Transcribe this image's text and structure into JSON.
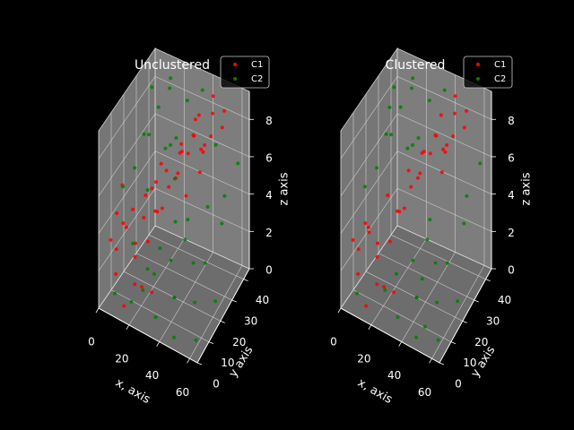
{
  "figure": {
    "background": "#000000",
    "pane_color": "#808080"
  },
  "chart_data": [
    {
      "type": "scatter",
      "title": "Unclustered",
      "xlabel": "x, axis",
      "ylabel": "y axis",
      "zlabel": "z axis",
      "x_ticks": [
        "0",
        "20",
        "40",
        "60"
      ],
      "y_ticks": [
        "0",
        "10",
        "20",
        "30",
        "40"
      ],
      "z_ticks": [
        "0",
        "2",
        "4",
        "6",
        "8"
      ],
      "xlim": [
        0,
        65
      ],
      "ylim": [
        0,
        45
      ],
      "zlim": [
        0,
        9.5
      ],
      "legend": {
        "placement": "top-right"
      },
      "grid": true,
      "series": [
        {
          "name": "C1",
          "color": "#ff0000",
          "points": [
            [
              3,
              6,
              3.2
            ],
            [
              5,
              8,
              2.6
            ],
            [
              8,
              4,
              1.8
            ],
            [
              10,
              10,
              3.8
            ],
            [
              12,
              5,
              4.6
            ],
            [
              4,
              14,
              5.4
            ],
            [
              14,
              12,
              2.2
            ],
            [
              18,
              7,
              1.4
            ],
            [
              20,
              15,
              3.0
            ],
            [
              16,
              18,
              5.0
            ],
            [
              22,
              20,
              4.2
            ],
            [
              25,
              12,
              0.8
            ],
            [
              24,
              25,
              6.0
            ],
            [
              28,
              22,
              5.6
            ],
            [
              30,
              30,
              6.8
            ],
            [
              32,
              26,
              7.2
            ],
            [
              35,
              33,
              7.6
            ],
            [
              38,
              30,
              8.0
            ],
            [
              40,
              36,
              7.0
            ],
            [
              42,
              40,
              8.4
            ],
            [
              36,
              38,
              6.4
            ],
            [
              45,
              35,
              7.8
            ],
            [
              48,
              42,
              8.6
            ],
            [
              30,
              35,
              6.2
            ],
            [
              26,
              30,
              5.2
            ],
            [
              34,
              22,
              6.6
            ],
            [
              44,
              30,
              7.4
            ],
            [
              50,
              38,
              8.2
            ],
            [
              6,
              20,
              3.6
            ],
            [
              9,
              25,
              2.8
            ],
            [
              2,
              12,
              4.0
            ],
            [
              15,
              2,
              0.6
            ],
            [
              11,
              16,
              2.4
            ],
            [
              21,
              9,
              1.2
            ],
            [
              27,
              18,
              4.8
            ],
            [
              33,
              40,
              7.9
            ],
            [
              39,
              44,
              8.8
            ],
            [
              46,
              25,
              6.9
            ],
            [
              18,
              28,
              5.8
            ],
            [
              13,
              30,
              4.4
            ],
            [
              7,
              34,
              3.4
            ],
            [
              23,
              38,
              6.1
            ],
            [
              29,
              42,
              7.3
            ],
            [
              41,
              20,
              5.9
            ],
            [
              19,
              22,
              3.9
            ]
          ]
        },
        {
          "name": "C2",
          "color": "#008000",
          "points": [
            [
              5,
              30,
              6.6
            ],
            [
              8,
              38,
              7.4
            ],
            [
              12,
              42,
              8.2
            ],
            [
              15,
              35,
              5.8
            ],
            [
              10,
              28,
              7.0
            ],
            [
              18,
              40,
              6.0
            ],
            [
              22,
              44,
              7.8
            ],
            [
              3,
              25,
              5.2
            ],
            [
              25,
              5,
              1.6
            ],
            [
              30,
              8,
              2.4
            ],
            [
              35,
              3,
              0.8
            ],
            [
              40,
              12,
              1.2
            ],
            [
              45,
              6,
              2.0
            ],
            [
              50,
              15,
              3.2
            ],
            [
              55,
              10,
              1.8
            ],
            [
              48,
              2,
              0.4
            ],
            [
              42,
              18,
              3.8
            ],
            [
              52,
              22,
              2.6
            ],
            [
              58,
              28,
              4.4
            ],
            [
              60,
              5,
              0.5
            ],
            [
              38,
              25,
              4.0
            ],
            [
              28,
              15,
              3.0
            ],
            [
              20,
              33,
              6.4
            ],
            [
              14,
              22,
              4.8
            ],
            [
              6,
              12,
              5.6
            ],
            [
              2,
              40,
              8.0
            ],
            [
              32,
              44,
              8.8
            ],
            [
              36,
              14,
              2.8
            ],
            [
              44,
              40,
              6.8
            ],
            [
              54,
              35,
              5.0
            ],
            [
              24,
              10,
              2.2
            ],
            [
              16,
              8,
              3.4
            ],
            [
              9,
              2,
              1.0
            ],
            [
              27,
              28,
              5.4
            ],
            [
              47,
              30,
              4.6
            ],
            [
              57,
              42,
              6.2
            ],
            [
              62,
              18,
              1.4
            ],
            [
              34,
              20,
              4.2
            ],
            [
              11,
              44,
              8.5
            ],
            [
              19,
              3,
              0.9
            ]
          ]
        }
      ]
    },
    {
      "type": "scatter",
      "title": "Clustered",
      "xlabel": "x, axis",
      "ylabel": "y axis",
      "zlabel": "z axis",
      "x_ticks": [
        "0",
        "20",
        "40",
        "60"
      ],
      "y_ticks": [
        "0",
        "10",
        "20",
        "30",
        "40"
      ],
      "z_ticks": [
        "0",
        "2",
        "4",
        "6",
        "8"
      ],
      "xlim": [
        0,
        65
      ],
      "ylim": [
        0,
        45
      ],
      "zlim": [
        0,
        9.5
      ],
      "legend": {
        "placement": "top-right"
      },
      "grid": true,
      "series": [
        {
          "name": "C1",
          "color": "#ff0000",
          "points": [
            [
              3,
              6,
              3.2
            ],
            [
              5,
              8,
              2.6
            ],
            [
              8,
              4,
              1.8
            ],
            [
              10,
              10,
              3.8
            ],
            [
              12,
              5,
              4.6
            ],
            [
              14,
              12,
              2.2
            ],
            [
              18,
              7,
              1.4
            ],
            [
              20,
              15,
              3.0
            ],
            [
              16,
              18,
              5.0
            ],
            [
              22,
              20,
              4.2
            ],
            [
              25,
              12,
              0.8
            ],
            [
              24,
              25,
              6.0
            ],
            [
              28,
              22,
              5.6
            ],
            [
              30,
              30,
              6.8
            ],
            [
              32,
              26,
              7.2
            ],
            [
              35,
              33,
              7.6
            ],
            [
              38,
              30,
              8.0
            ],
            [
              40,
              36,
              7.0
            ],
            [
              42,
              40,
              8.4
            ],
            [
              36,
              38,
              6.4
            ],
            [
              45,
              35,
              7.8
            ],
            [
              48,
              42,
              8.6
            ],
            [
              30,
              35,
              6.2
            ],
            [
              26,
              30,
              5.2
            ],
            [
              34,
              22,
              6.6
            ],
            [
              44,
              30,
              7.4
            ],
            [
              50,
              38,
              8.2
            ],
            [
              11,
              16,
              2.4
            ],
            [
              21,
              9,
              1.2
            ],
            [
              27,
              18,
              4.8
            ],
            [
              33,
              40,
              7.9
            ],
            [
              39,
              44,
              8.8
            ],
            [
              46,
              25,
              6.9
            ],
            [
              19,
              22,
              3.9
            ],
            [
              15,
              2,
              0.6
            ],
            [
              7,
              14,
              3.0
            ]
          ]
        },
        {
          "name": "C2",
          "color": "#008000",
          "points": [
            [
              5,
              30,
              6.6
            ],
            [
              8,
              38,
              7.4
            ],
            [
              12,
              42,
              8.2
            ],
            [
              15,
              35,
              5.8
            ],
            [
              10,
              28,
              7.0
            ],
            [
              18,
              40,
              6.0
            ],
            [
              22,
              44,
              7.8
            ],
            [
              3,
              25,
              5.2
            ],
            [
              25,
              5,
              1.6
            ],
            [
              30,
              8,
              2.4
            ],
            [
              35,
              3,
              0.8
            ],
            [
              40,
              12,
              1.2
            ],
            [
              45,
              6,
              2.0
            ],
            [
              50,
              15,
              3.2
            ],
            [
              55,
              10,
              1.8
            ],
            [
              48,
              2,
              0.4
            ],
            [
              42,
              18,
              3.8
            ],
            [
              52,
              22,
              2.6
            ],
            [
              58,
              28,
              4.4
            ],
            [
              60,
              5,
              0.5
            ],
            [
              38,
              25,
              4.0
            ],
            [
              20,
              33,
              6.4
            ],
            [
              6,
              12,
              5.6
            ],
            [
              2,
              40,
              8.0
            ],
            [
              32,
              44,
              8.8
            ],
            [
              36,
              14,
              2.8
            ],
            [
              54,
              35,
              5.0
            ],
            [
              9,
              2,
              1.0
            ],
            [
              57,
              42,
              6.2
            ],
            [
              62,
              18,
              1.4
            ],
            [
              11,
              44,
              8.5
            ],
            [
              4,
              34,
              7.6
            ],
            [
              47,
              8,
              2.9
            ],
            [
              53,
              3,
              1.1
            ]
          ]
        }
      ]
    }
  ]
}
